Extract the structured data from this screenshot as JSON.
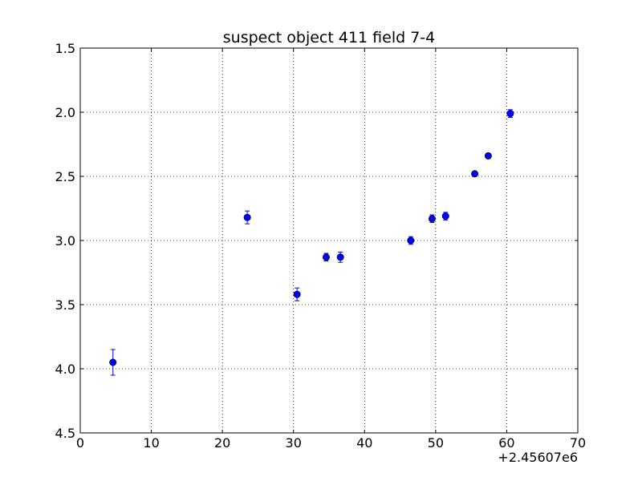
{
  "chart_data": {
    "type": "scatter",
    "title": "suspect object 411 field 7-4",
    "xlabel": "",
    "ylabel": "",
    "x_offset_label": "+2.45607e6",
    "xlim": [
      0,
      70
    ],
    "ylim": [
      4.5,
      1.5
    ],
    "y_inverted": true,
    "grid": true,
    "x_ticks": [
      0,
      10,
      20,
      30,
      40,
      50,
      60,
      70
    ],
    "x_tick_labels": [
      "0",
      "10",
      "20",
      "30",
      "40",
      "50",
      "60",
      "70"
    ],
    "y_ticks": [
      1.5,
      2.0,
      2.5,
      3.0,
      3.5,
      4.0,
      4.5
    ],
    "y_tick_labels": [
      "1.5",
      "2.0",
      "2.5",
      "3.0",
      "3.5",
      "4.0",
      "4.5"
    ],
    "marker_color": "#0000ff",
    "series": [
      {
        "x": [
          4.6,
          23.5,
          30.5,
          34.6,
          36.6,
          46.5,
          49.5,
          51.4,
          55.5,
          57.4,
          60.5
        ],
        "y": [
          3.95,
          2.82,
          3.42,
          3.13,
          3.13,
          3.0,
          2.83,
          2.81,
          2.48,
          2.34,
          2.01
        ],
        "yerr": [
          0.1,
          0.05,
          0.05,
          0.03,
          0.04,
          0.03,
          0.03,
          0.03,
          0.01,
          0.01,
          0.03
        ]
      }
    ]
  }
}
